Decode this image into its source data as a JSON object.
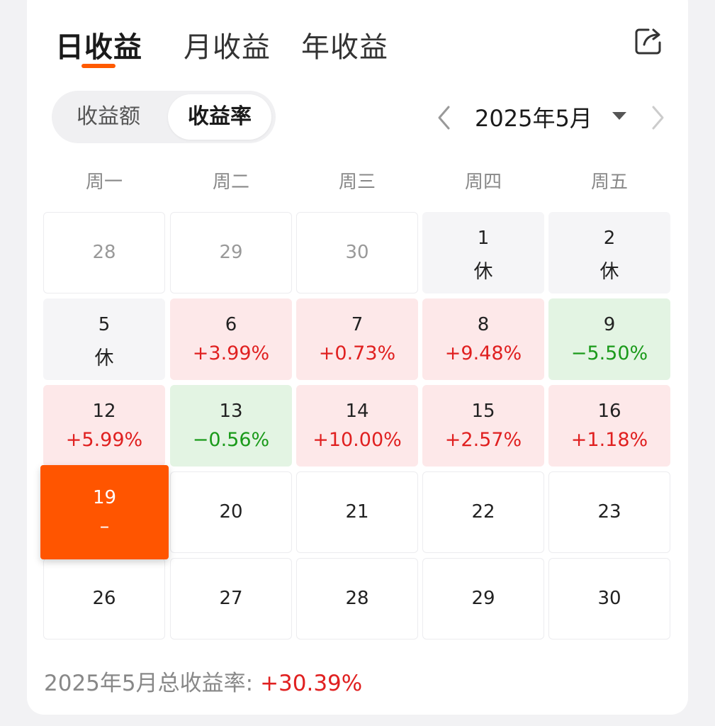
{
  "tabs": [
    "日收益",
    "月收益",
    "年收益"
  ],
  "toggle": {
    "amount": "收益额",
    "rate": "收益率"
  },
  "month_picker": {
    "label": "2025年5月"
  },
  "weekdays": [
    "周一",
    "周二",
    "周三",
    "周四",
    "周五"
  ],
  "calendar": {
    "rows": [
      [
        {
          "day": "28",
          "value": "",
          "status": "other"
        },
        {
          "day": "29",
          "value": "",
          "status": "other"
        },
        {
          "day": "30",
          "value": "",
          "status": "other"
        },
        {
          "day": "1",
          "value": "休",
          "status": "rest"
        },
        {
          "day": "2",
          "value": "休",
          "status": "rest"
        }
      ],
      [
        {
          "day": "5",
          "value": "休",
          "status": "rest"
        },
        {
          "day": "6",
          "value": "+3.99%",
          "status": "up"
        },
        {
          "day": "7",
          "value": "+0.73%",
          "status": "up"
        },
        {
          "day": "8",
          "value": "+9.48%",
          "status": "up"
        },
        {
          "day": "9",
          "value": "−5.50%",
          "status": "down"
        }
      ],
      [
        {
          "day": "12",
          "value": "+5.99%",
          "status": "up"
        },
        {
          "day": "13",
          "value": "−0.56%",
          "status": "down"
        },
        {
          "day": "14",
          "value": "+10.00%",
          "status": "up"
        },
        {
          "day": "15",
          "value": "+2.57%",
          "status": "up"
        },
        {
          "day": "16",
          "value": "+1.18%",
          "status": "up"
        }
      ],
      [
        {
          "day": "19",
          "value": "–",
          "status": "today"
        },
        {
          "day": "20",
          "value": "",
          "status": "future"
        },
        {
          "day": "21",
          "value": "",
          "status": "future"
        },
        {
          "day": "22",
          "value": "",
          "status": "future"
        },
        {
          "day": "23",
          "value": "",
          "status": "future"
        }
      ],
      [
        {
          "day": "26",
          "value": "",
          "status": "future"
        },
        {
          "day": "27",
          "value": "",
          "status": "future"
        },
        {
          "day": "28",
          "value": "",
          "status": "future"
        },
        {
          "day": "29",
          "value": "",
          "status": "future"
        },
        {
          "day": "30",
          "value": "",
          "status": "future"
        }
      ]
    ]
  },
  "summary": {
    "label": "2025年5月总收益率:",
    "value": "+30.39%"
  },
  "colors": {
    "accent": "#ff5500",
    "gain_text": "#e02020",
    "loss_text": "#1a9a1a",
    "gain_bg": "#fde8e9",
    "loss_bg": "#e3f4e3",
    "rest_bg": "#f5f5f7"
  },
  "icons": {
    "share": "share-icon",
    "prev": "chevron-left-icon",
    "next": "chevron-right-icon",
    "dropdown": "caret-down-icon"
  }
}
